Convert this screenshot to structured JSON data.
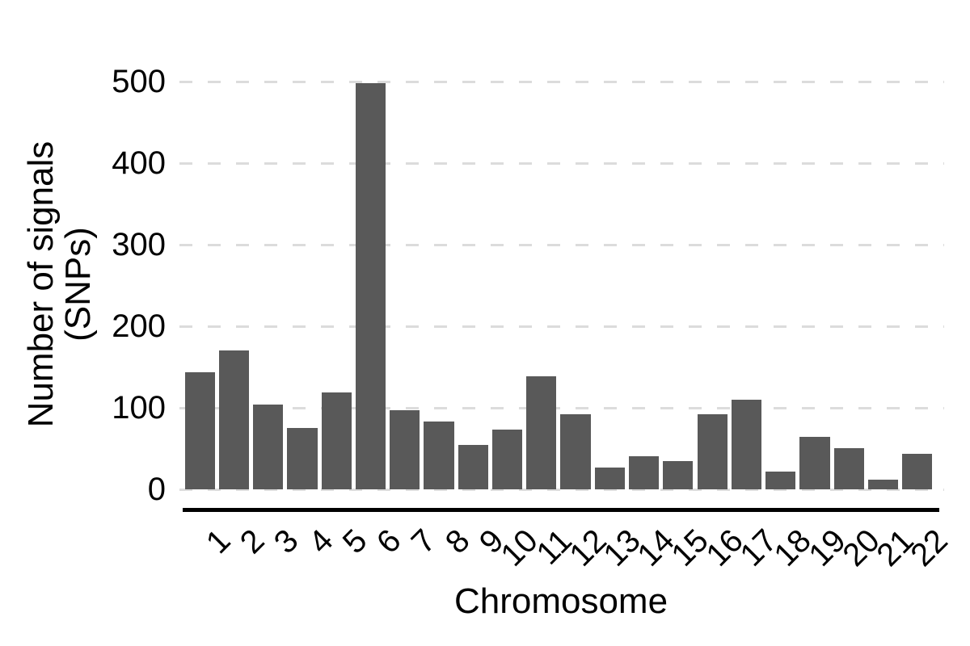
{
  "chart_data": {
    "type": "bar",
    "title": "",
    "xlabel": "Chromosome",
    "ylabel_lines": [
      "Number of signals",
      "(SNPs)"
    ],
    "categories": [
      "1",
      "2",
      "3",
      "4",
      "5",
      "6",
      "7",
      "8",
      "9",
      "10",
      "11",
      "12",
      "13",
      "14",
      "15",
      "16",
      "17",
      "18",
      "19",
      "20",
      "21",
      "22"
    ],
    "values": [
      144,
      170,
      104,
      75,
      119,
      498,
      97,
      83,
      54,
      73,
      139,
      92,
      27,
      41,
      35,
      92,
      110,
      22,
      64,
      50,
      12,
      44
    ],
    "yticks": [
      0,
      100,
      200,
      300,
      400,
      500
    ],
    "ylim": [
      0,
      500
    ],
    "legend": "none",
    "grid": "horizontal-dashed",
    "x_tick_rotation_deg": 45,
    "colors": {
      "bar": "#595959",
      "gridline": "#DCDCDC",
      "axis_line": "#000000",
      "text": "#000000",
      "background": "#FFFFFF"
    }
  }
}
